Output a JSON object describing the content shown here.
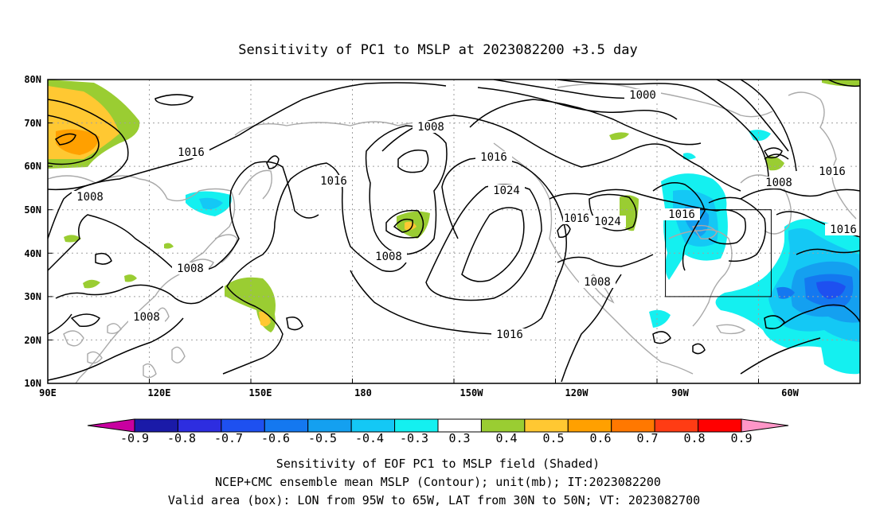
{
  "title": "Sensitivity of PC1 to MSLP at 2023082200 +3.5 day",
  "map": {
    "lon_labels": [
      "90E",
      "120E",
      "150E",
      "180",
      "150W",
      "120W",
      "90W",
      "60W"
    ],
    "lat_labels": [
      "80N",
      "70N",
      "60N",
      "50N",
      "40N",
      "30N",
      "20N",
      "10N"
    ],
    "grid": "dotted",
    "projection": "cylindrical equidistant"
  },
  "contour_labels": [
    {
      "text": "1000"
    },
    {
      "text": "1008"
    },
    {
      "text": "1016"
    },
    {
      "text": "1008"
    },
    {
      "text": "1016"
    },
    {
      "text": "1024"
    },
    {
      "text": "1016"
    },
    {
      "text": "1008"
    },
    {
      "text": "1016"
    },
    {
      "text": "1008"
    },
    {
      "text": "1008"
    },
    {
      "text": "1016"
    },
    {
      "text": "1008"
    },
    {
      "text": "1016"
    },
    {
      "text": "1016"
    },
    {
      "text": "1016"
    },
    {
      "text": "1024"
    },
    {
      "text": "1016"
    },
    {
      "text": "1008"
    }
  ],
  "colorbar": {
    "labels": [
      "-0.9",
      "-0.8",
      "-0.7",
      "-0.6",
      "-0.5",
      "-0.4",
      "-0.3",
      "0.3",
      "0.4",
      "0.5",
      "0.6",
      "0.7",
      "0.8",
      "0.9"
    ],
    "colors": [
      "#1a1aa8",
      "#2d2de0",
      "#1e50f0",
      "#1478f0",
      "#14a0f0",
      "#14c8f5",
      "#14f0f0",
      "#ffffff",
      "#9acd32",
      "#ffc832",
      "#ffa000",
      "#ff7800",
      "#ff3c14",
      "#ff0000"
    ],
    "low_end_color": "#c800a0",
    "high_end_color": "#ff96c8"
  },
  "valid_box": {
    "lon_min": "95W",
    "lon_max": "65W",
    "lat_min": "30N",
    "lat_max": "50N"
  },
  "captions": [
    "Sensitivity of EOF PC1 to MSLP field (Shaded)",
    "NCEP+CMC ensemble mean MSLP (Contour); unit(mb); IT:2023082200",
    "Valid area (box): LON from 95W to 65W, LAT from 30N to 50N; VT: 2023082700"
  ]
}
